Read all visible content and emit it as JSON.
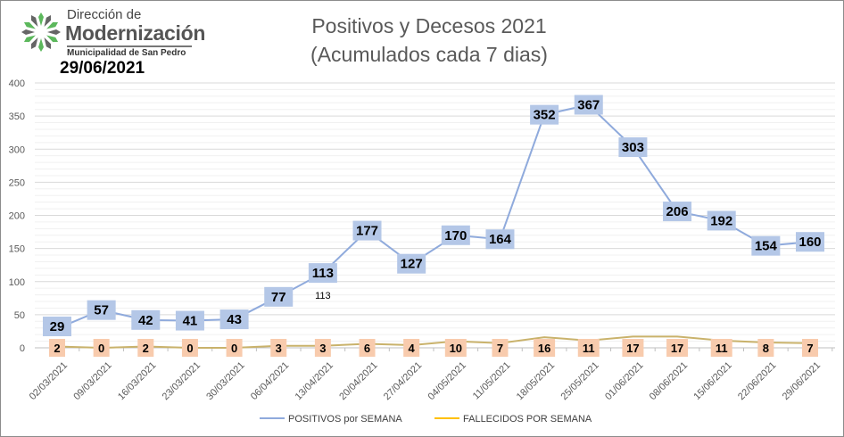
{
  "logo": {
    "line1": "Dirección de",
    "line2": "Modernización",
    "line3": "Municipalidad de San Pedro",
    "colors": [
      "#5cb85c",
      "#666666"
    ]
  },
  "date": "29/06/2021",
  "chart_data": {
    "type": "line",
    "title": [
      "Positivos y Decesos 2021",
      "(Acumulados cada 7 dias)"
    ],
    "categories": [
      "02/03/2021",
      "09/03/2021",
      "16/03/2021",
      "23/03/2021",
      "30/03/2021",
      "06/04/2021",
      "13/04/2021",
      "20/04/2021",
      "27/04/2021",
      "04/05/2021",
      "11/05/2021",
      "18/05/2021",
      "25/05/2021",
      "01/06/2021",
      "08/06/2021",
      "15/06/2021",
      "22/06/2021",
      "29/06/2021"
    ],
    "series": [
      {
        "name": "POSITIVOS por SEMANA",
        "color": "#8faadc",
        "label_bg": "#b4c7e7",
        "values": [
          29,
          57,
          42,
          41,
          43,
          77,
          113,
          177,
          127,
          170,
          164,
          352,
          367,
          303,
          206,
          192,
          154,
          160
        ]
      },
      {
        "name": "FALLECIDOS POR SEMANA",
        "color": "#c9b26b",
        "legend_color": "#ffc000",
        "label_bg": "#f8cbad",
        "values": [
          2,
          0,
          2,
          0,
          0,
          3,
          3,
          6,
          4,
          10,
          7,
          16,
          11,
          17,
          17,
          11,
          8,
          7
        ]
      }
    ],
    "annotations": [
      {
        "category": "13/04/2021",
        "text": "113"
      }
    ],
    "ylim": [
      0,
      400
    ],
    "yticks": [
      0,
      50,
      100,
      150,
      200,
      250,
      300,
      350,
      400
    ],
    "grid": true,
    "legend": "bottom"
  }
}
